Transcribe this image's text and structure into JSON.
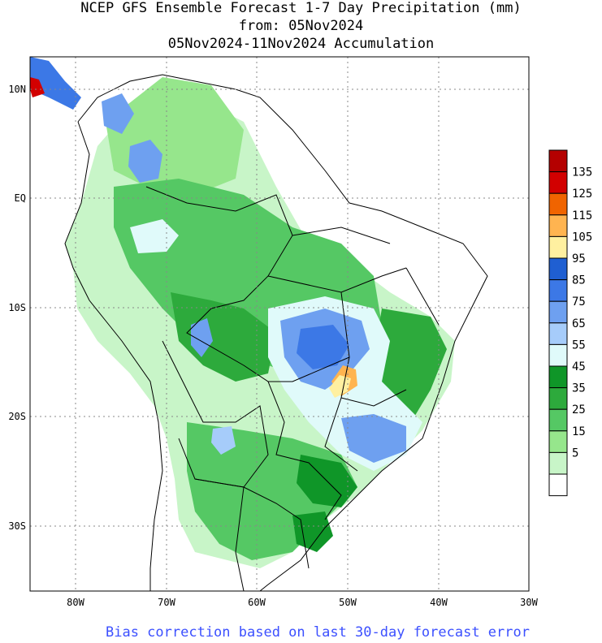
{
  "title": {
    "line1": "NCEP GFS Ensemble Forecast 1-7 Day Precipitation (mm)",
    "line2": "from: 05Nov2024",
    "line3": "05Nov2024-11Nov2024 Accumulation"
  },
  "axes": {
    "lat_labels": [
      "10N",
      "EQ",
      "10S",
      "20S",
      "30S"
    ],
    "lon_labels": [
      "80W",
      "70W",
      "60W",
      "50W",
      "40W",
      "30W"
    ]
  },
  "legend": {
    "labels": [
      "135",
      "125",
      "115",
      "105",
      "95",
      "85",
      "75",
      "65",
      "55",
      "45",
      "35",
      "25",
      "15",
      "5"
    ],
    "colors": [
      "#b40000",
      "#d20000",
      "#f06400",
      "#ffb450",
      "#fff0a0",
      "#1f5fd2",
      "#3c78e6",
      "#6ea0f0",
      "#a6ccfa",
      "#e0fafa",
      "#0f9628",
      "#2daa3c",
      "#55c864",
      "#96e68c",
      "#c8f5c8",
      "#ffffff"
    ]
  },
  "footer": {
    "text": "Bias correction based on last 30-day forecast error",
    "color": "#3c50ff"
  },
  "colors": {
    "grid": "#888888",
    "land_dry": "#ffffff",
    "ocean": "#ffffff"
  }
}
